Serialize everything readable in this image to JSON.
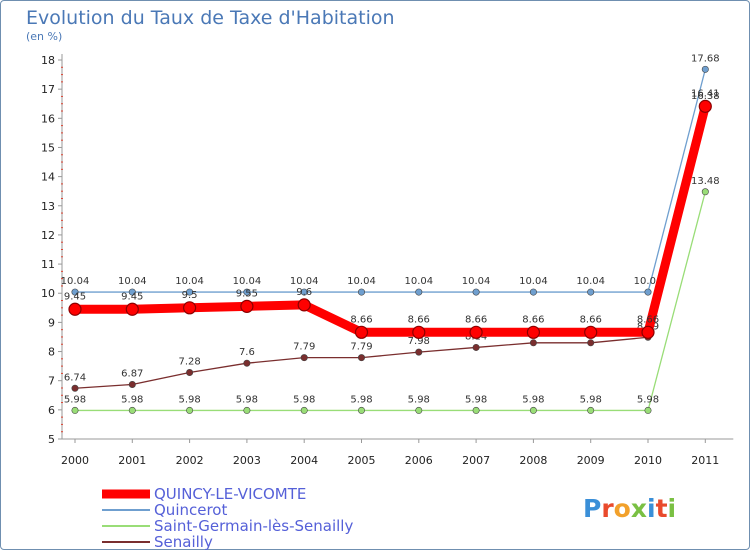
{
  "chart_data": {
    "type": "line",
    "title": "Evolution du Taux de Taxe d'Habitation",
    "subtitle": "(en %)",
    "x": [
      "2000",
      "2001",
      "2002",
      "2003",
      "2004",
      "2005",
      "2006",
      "2007",
      "2008",
      "2009",
      "2010",
      "2011"
    ],
    "ylim": [
      5,
      18
    ],
    "yticks": [
      "5",
      "6",
      "7",
      "8",
      "9",
      "10",
      "11",
      "12",
      "13",
      "14",
      "15",
      "16",
      "17",
      "18"
    ],
    "grid": false,
    "legend_position": "bottom-left",
    "series": [
      {
        "name": "QUINCY-LE-VICOMTE",
        "color": "#ff0000",
        "values": [
          9.45,
          9.45,
          9.5,
          9.55,
          9.6,
          8.66,
          8.66,
          8.66,
          8.66,
          8.66,
          8.66,
          16.41
        ],
        "labels": [
          "9.45",
          "9.45",
          "9.5",
          "9.55",
          "9.6",
          "8.66",
          "8.66",
          "8.66",
          "8.66",
          "8.66",
          "8.66",
          "16.41"
        ]
      },
      {
        "name": "Quincerot",
        "color": "#6f9fcf",
        "values": [
          10.04,
          10.04,
          10.04,
          10.04,
          10.04,
          10.04,
          10.04,
          10.04,
          10.04,
          10.04,
          10.04,
          17.68
        ],
        "labels": [
          "10.04",
          "10.04",
          "10.04",
          "10.04",
          "10.04",
          "10.04",
          "10.04",
          "10.04",
          "10.04",
          "10.04",
          "10.04",
          "17.68"
        ]
      },
      {
        "name": "Saint-Germain-lès-Senailly",
        "color": "#99dd77",
        "values": [
          5.98,
          5.98,
          5.98,
          5.98,
          5.98,
          5.98,
          5.98,
          5.98,
          5.98,
          5.98,
          5.98,
          13.48
        ],
        "labels": [
          "5.98",
          "5.98",
          "5.98",
          "5.98",
          "5.98",
          "5.98",
          "5.98",
          "5.98",
          "5.98",
          "5.98",
          "5.98",
          "13.48"
        ]
      },
      {
        "name": "Senailly",
        "color": "#7a2e2e",
        "values": [
          6.74,
          6.87,
          7.28,
          7.6,
          7.79,
          7.79,
          7.98,
          8.14,
          8.3,
          8.3,
          8.49,
          16.38
        ],
        "labels": [
          "6.74",
          "6.87",
          "7.28",
          "7.6",
          "7.79",
          "7.79",
          "7.98",
          "8.14",
          "8.3",
          "8.3",
          "8.49",
          "16.38"
        ]
      }
    ]
  },
  "brand": {
    "letters": [
      "P",
      "r",
      "o",
      "x",
      "i",
      "t",
      "i"
    ],
    "colors": [
      "#3a8fd8",
      "#e94a2c",
      "#f2a12b",
      "#7ac043",
      "#3a8fd8",
      "#e94a2c",
      "#7ac043"
    ]
  }
}
